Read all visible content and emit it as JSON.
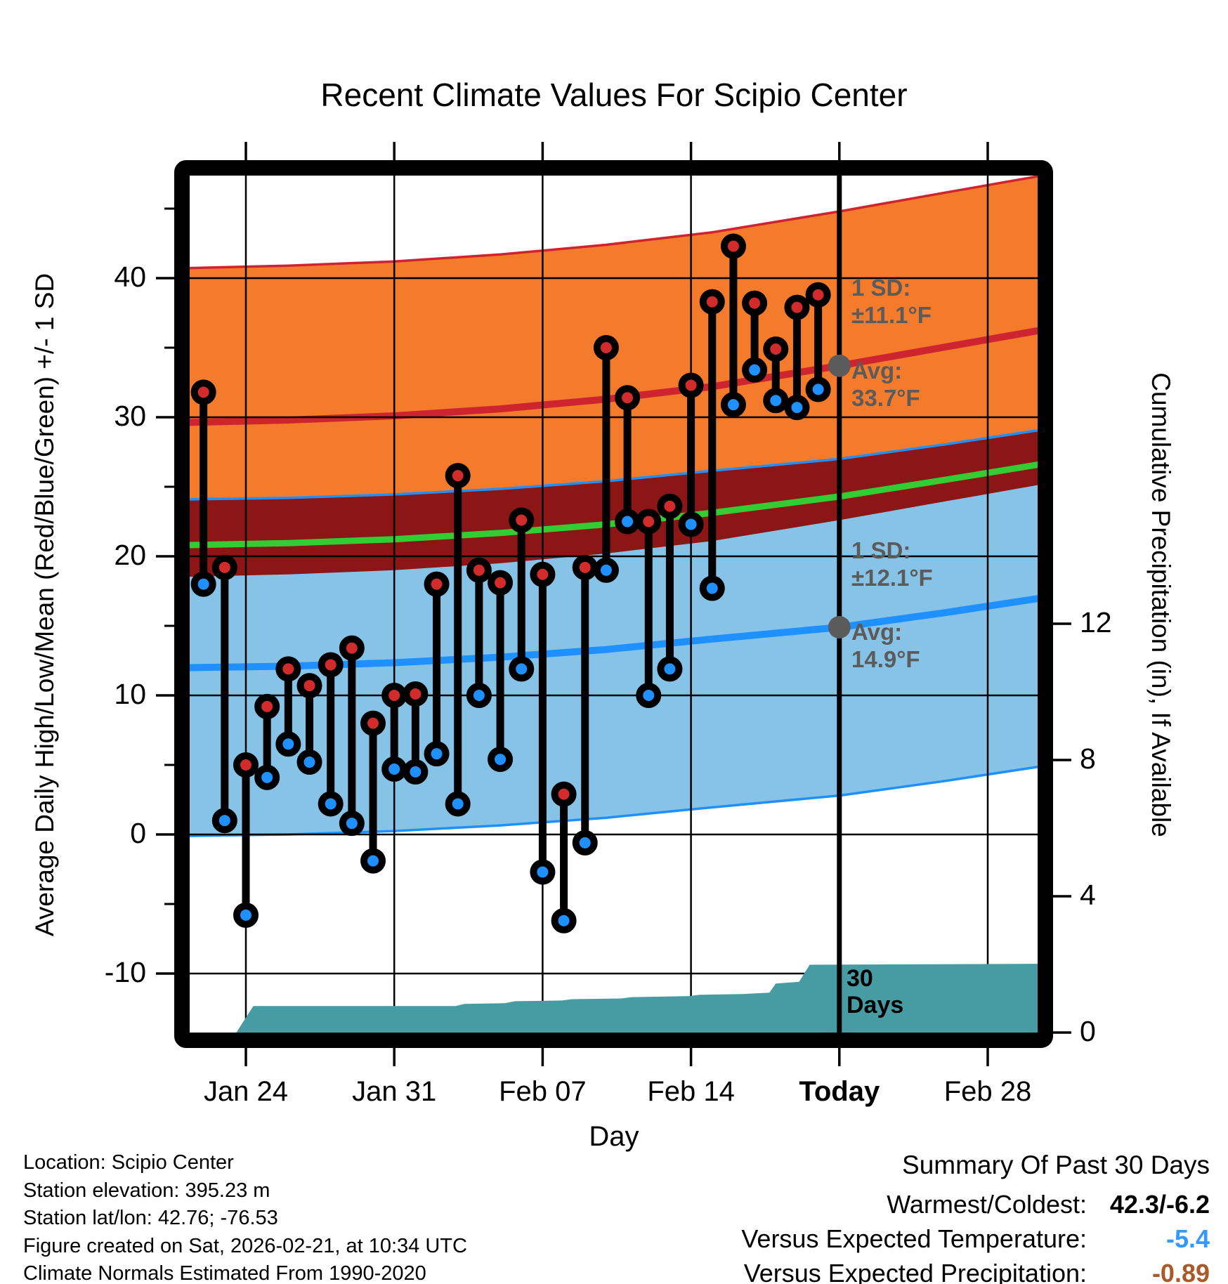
{
  "title": "Recent Climate Values For Scipio Center",
  "axes": {
    "x_label": "Day",
    "y_left_label": "Average Daily High/Low/Mean (Red/Blue/Green) +/- 1 SD",
    "y_right_label": "Cumulative Precipitation (in), If Available"
  },
  "annotations": {
    "high_band": {
      "sd_label": "1 SD:",
      "sd_value": "±11.1°F",
      "avg_label": "Avg:",
      "avg_value": "33.7°F"
    },
    "low_band": {
      "sd_label": "1 SD:",
      "sd_value": "±12.1°F",
      "avg_label": "Avg:",
      "avg_value": "14.9°F"
    },
    "window_line1": "30",
    "window_line2": "Days"
  },
  "footer": {
    "lines": [
      "Location: Scipio Center",
      "Station elevation: 395.23 m",
      "Station lat/lon: 42.76; -76.53",
      "Figure created on Sat, 2026-02-21, at 10:34 UTC",
      "Climate Normals Estimated From 1990-2020"
    ]
  },
  "summary": {
    "title": "Summary Of Past 30 Days",
    "rows": [
      {
        "label": "Warmest/Coldest:",
        "value": "42.3/-6.2",
        "color": "#000000"
      },
      {
        "label": "Versus Expected Temperature:",
        "value": "-5.4",
        "color": "#3399FF"
      },
      {
        "label": "Versus Expected Precipitation:",
        "value": "-0.89",
        "color": "#A85A28"
      }
    ]
  },
  "colors": {
    "high_band_fill": "#F47B2B",
    "low_band_fill": "#87C3E7",
    "overlap_fill": "#8C1616",
    "avg_high_line": "#CE2430",
    "avg_low_line": "#1E90FF",
    "mean_line": "#32CD32",
    "band_edge_red": "#CE2430",
    "band_edge_blue": "#1E90FF",
    "high_marker": "#D22B2B",
    "low_marker": "#1E90FF",
    "stem": "#000000",
    "precip_fill": "#479CA4",
    "annotation_gray": "#5B5B5B",
    "grid": "#000000"
  },
  "chart_data": {
    "type": "scatter",
    "title": "Recent Climate Values For Scipio Center",
    "xlabel": "Day",
    "ylabel_left": "Average Daily High/Low/Mean (Red/Blue/Green) +/- 1 SD",
    "ylabel_right": "Cumulative Precipitation (in), If Available",
    "legend": "none",
    "grid": "on",
    "ylim_temp_f": [
      -14.2,
      47.4
    ],
    "x_domain_days_from_jan22": [
      -0.65,
      39.35
    ],
    "x_ticks": [
      {
        "label": "Jan 24",
        "day": 2,
        "bold": false
      },
      {
        "label": "Jan 31",
        "day": 9,
        "bold": false
      },
      {
        "label": "Feb 07",
        "day": 16,
        "bold": false
      },
      {
        "label": "Feb 14",
        "day": 23,
        "bold": false
      },
      {
        "label": "Today",
        "day": 30,
        "bold": true
      },
      {
        "label": "Feb 28",
        "day": 37,
        "bold": false
      }
    ],
    "y_left_ticks": [
      40,
      30,
      20,
      10,
      0,
      -10
    ],
    "y_left_minor_ticks": [
      45,
      35,
      25,
      15,
      5,
      -5
    ],
    "y_right_ticks": [
      12,
      8,
      4,
      0
    ],
    "today_day": 30,
    "days": [
      "Jan 22",
      "Jan 23",
      "Jan 24",
      "Jan 25",
      "Jan 26",
      "Jan 27",
      "Jan 28",
      "Jan 29",
      "Jan 30",
      "Jan 31",
      "Feb 01",
      "Feb 02",
      "Feb 03",
      "Feb 04",
      "Feb 05",
      "Feb 06",
      "Feb 07",
      "Feb 08",
      "Feb 09",
      "Feb 10",
      "Feb 11",
      "Feb 12",
      "Feb 13",
      "Feb 14",
      "Feb 15",
      "Feb 16",
      "Feb 17",
      "Feb 18",
      "Feb 19",
      "Feb 20"
    ],
    "daily_high_f": [
      31.8,
      19.2,
      5.0,
      9.2,
      11.9,
      10.7,
      12.2,
      13.4,
      8.0,
      10.0,
      10.1,
      18.0,
      25.8,
      19.0,
      18.1,
      22.6,
      18.7,
      2.9,
      19.2,
      35.0,
      31.4,
      22.5,
      23.6,
      32.3,
      38.3,
      42.3,
      38.2,
      34.9,
      37.9,
      38.8
    ],
    "daily_low_f": [
      18.0,
      1.0,
      -5.8,
      4.1,
      6.5,
      5.2,
      2.2,
      0.8,
      -1.9,
      4.7,
      4.5,
      5.8,
      2.2,
      10.0,
      5.4,
      11.9,
      -2.7,
      -6.2,
      -0.6,
      19.0,
      22.5,
      10.0,
      11.9,
      22.3,
      17.7,
      30.9,
      33.4,
      31.2,
      30.7,
      32.0
    ],
    "normals": {
      "day_offsets": [
        -2.7,
        4,
        9,
        14,
        19,
        24,
        30,
        35,
        40.4
      ],
      "avg_high_f": [
        29.55,
        29.8,
        30.1,
        30.6,
        31.3,
        32.2,
        33.7,
        35.05,
        36.5
      ],
      "avg_low_f": [
        11.95,
        12.1,
        12.35,
        12.75,
        13.3,
        14.05,
        14.9,
        15.95,
        17.2
      ],
      "high_sd_f": 11.1,
      "low_sd_f": 12.1,
      "today_avg_high_f": 33.7,
      "today_avg_low_f": 14.9
    },
    "precip_cumulative_in": {
      "points_day_in": [
        [
          -2.7,
          0
        ],
        [
          1.55,
          0
        ],
        [
          2.35,
          0.78
        ],
        [
          11.9,
          0.78
        ],
        [
          12.3,
          0.84
        ],
        [
          14.2,
          0.86
        ],
        [
          14.7,
          0.92
        ],
        [
          16.9,
          0.94
        ],
        [
          17.4,
          0.98
        ],
        [
          19.7,
          1.0
        ],
        [
          20.2,
          1.04
        ],
        [
          22.9,
          1.07
        ],
        [
          23.4,
          1.11
        ],
        [
          25.4,
          1.13
        ],
        [
          26.7,
          1.17
        ],
        [
          27.0,
          1.44
        ],
        [
          28.1,
          1.49
        ],
        [
          28.6,
          1.99
        ],
        [
          40.4,
          2.02
        ]
      ],
      "axis_max_in": 25.2
    },
    "summary_past_30_days": {
      "warmest_f": 42.3,
      "coldest_f": -6.2,
      "versus_expected_temperature_f": -5.4,
      "versus_expected_precipitation_in": -0.89
    }
  }
}
